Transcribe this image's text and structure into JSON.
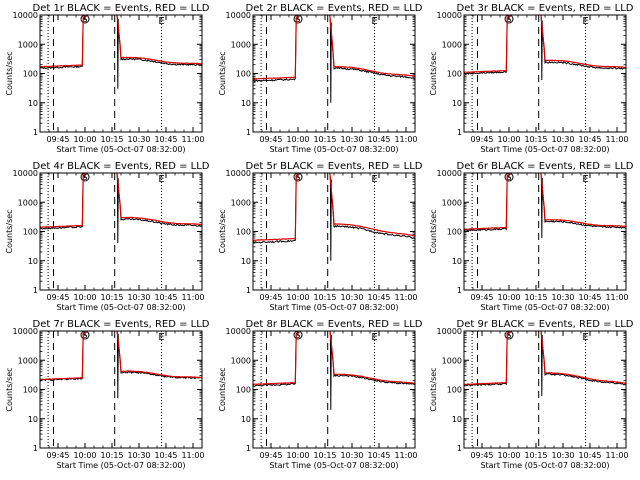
{
  "chart_data": {
    "type": "line",
    "title_suffix": "BLACK = Events, RED = LLD",
    "xlabel": "Start Time (05-Oct-07 08:32:00)",
    "ylabel": "Counts/sec",
    "yscale": "log",
    "ylim": [
      1,
      10000
    ],
    "ytick_labels": [
      "1",
      "10",
      "100",
      "1000",
      "10000"
    ],
    "xlim": [
      35,
      125
    ],
    "xtick_labels": [
      "09:45",
      "10:00",
      "10:15",
      "10:30",
      "10:45",
      "11:00"
    ],
    "xticks_min": [
      45,
      60,
      75,
      90,
      105,
      120
    ],
    "dotted_lines_min": [
      39.5,
      102.5
    ],
    "dashed_lines_min": [
      42.5,
      76.5
    ],
    "markers": {
      "S": {
        "text": "S",
        "x_min": 60
      },
      "E": {
        "text": "E",
        "x_min": 102.5
      }
    },
    "series_colors": {
      "events": "#000000",
      "lld": "#dd0000"
    },
    "panels": [
      {
        "title": "Det 1r",
        "quiet": 170,
        "post_lld": 350,
        "post_events": 310,
        "end": 200,
        "dip": 30,
        "gap": 0.1
      },
      {
        "title": "Det 2r",
        "quiet": 65,
        "post_lld": 170,
        "post_events": 150,
        "end": 75,
        "dip": 10,
        "gap": 0.14
      },
      {
        "title": "Det 3r",
        "quiet": 110,
        "post_lld": 280,
        "post_events": 240,
        "end": 150,
        "dip": 60,
        "gap": 0.1
      },
      {
        "title": "Det 4r",
        "quiet": 140,
        "post_lld": 300,
        "post_events": 260,
        "end": 160,
        "dip": 40,
        "gap": 0.1
      },
      {
        "title": "Det 5r",
        "quiet": 50,
        "post_lld": 180,
        "post_events": 150,
        "end": 65,
        "dip": 10,
        "gap": 0.16
      },
      {
        "title": "Det 6r",
        "quiet": 120,
        "post_lld": 250,
        "post_events": 220,
        "end": 140,
        "dip": 60,
        "gap": 0.1
      },
      {
        "title": "Det 7r",
        "quiet": 220,
        "post_lld": 420,
        "post_events": 380,
        "end": 240,
        "dip": 50,
        "gap": 0.05
      },
      {
        "title": "Det 8r",
        "quiet": 150,
        "post_lld": 330,
        "post_events": 300,
        "end": 150,
        "dip": 20,
        "gap": 0.1
      },
      {
        "title": "Det 9r",
        "quiet": 150,
        "post_lld": 370,
        "post_events": 330,
        "end": 150,
        "dip": 60,
        "gap": 0.08
      }
    ]
  }
}
